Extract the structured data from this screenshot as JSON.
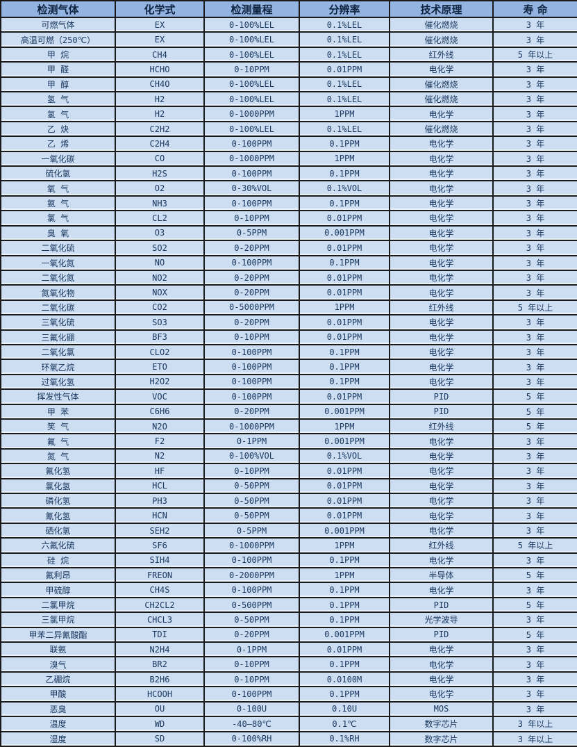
{
  "colors": {
    "header_bg": "#93b4e0",
    "row_bg": "#cdddf2",
    "border": "#1a1a1a",
    "text": "#17375e",
    "header_text": "#0f2440",
    "row_highlight": "#e9f1fb"
  },
  "table": {
    "columns": [
      "检测气体",
      "化学式",
      "检测量程",
      "分辨率",
      "技术原理",
      "寿 命"
    ],
    "column_keys": [
      "gas",
      "formula",
      "range",
      "resolution",
      "principle",
      "lifespan"
    ],
    "rows": [
      [
        "可燃气体",
        "EX",
        "0-100%LEL",
        "0.1%LEL",
        "催化燃烧",
        "3 年"
      ],
      [
        "高温可燃（250℃）",
        "EX",
        "0-100%LEL",
        "0.1%LEL",
        "催化燃烧",
        "3 年"
      ],
      [
        "甲 烷",
        "CH4",
        "0-100%LEL",
        "0.1%LEL",
        "红外线",
        "5 年以上"
      ],
      [
        "甲 醛",
        "HCHO",
        "0-10PPM",
        "0.01PPM",
        "电化学",
        "3 年"
      ],
      [
        "甲 醇",
        "CH4O",
        "0-100%LEL",
        "0.1%LEL",
        "催化燃烧",
        "3 年"
      ],
      [
        "氢 气",
        "H2",
        "0-100%LEL",
        "0.1%LEL",
        "催化燃烧",
        "3 年"
      ],
      [
        "氢 气",
        "H2",
        "0-1000PPM",
        "1PPM",
        "电化学",
        "3 年"
      ],
      [
        "乙 炔",
        "C2H2",
        "0-100%LEL",
        "0.1%LEL",
        "催化燃烧",
        "3 年"
      ],
      [
        "乙 烯",
        "C2H4",
        "0-100PPM",
        "0.1PPM",
        "电化学",
        "3 年"
      ],
      [
        "一氧化碳",
        "CO",
        "0-1000PPM",
        "1PPM",
        "电化学",
        "3 年"
      ],
      [
        "硫化氢",
        "H2S",
        "0-100PPM",
        "0.1PPM",
        "电化学",
        "3 年"
      ],
      [
        "氧 气",
        "O2",
        "0-30%VOL",
        "0.1%VOL",
        "电化学",
        "3 年"
      ],
      [
        "氨 气",
        "NH3",
        "0-100PPM",
        "0.1PPM",
        "电化学",
        "3 年"
      ],
      [
        "氯 气",
        "CL2",
        "0-10PPM",
        "0.01PPM",
        "电化学",
        "3 年"
      ],
      [
        "臭 氧",
        "O3",
        "0-5PPM",
        "0.001PPM",
        "电化学",
        "3 年"
      ],
      [
        "二氧化硫",
        "SO2",
        "0-20PPM",
        "0.01PPM",
        "电化学",
        "3 年"
      ],
      [
        "一氧化氮",
        "NO",
        "0-100PPM",
        "0.1PPM",
        "电化学",
        "3 年"
      ],
      [
        "二氧化氮",
        "NO2",
        "0-20PPM",
        "0.01PPM",
        "电化学",
        "3 年"
      ],
      [
        "氮氧化物",
        "NOX",
        "0-20PPM",
        "0.01PPM",
        "电化学",
        "3 年"
      ],
      [
        "二氧化碳",
        "CO2",
        "0-5000PPM",
        "1PPM",
        "红外线",
        "5 年以上"
      ],
      [
        "三氧化硫",
        "SO3",
        "0-20PPM",
        "0.01PPM",
        "电化学",
        "3 年"
      ],
      [
        "三氟化硼",
        "BF3",
        "0-10PPM",
        "0.01PPM",
        "电化学",
        "3 年"
      ],
      [
        "二氧化氯",
        "CLO2",
        "0-100PPM",
        "0.1PPM",
        "电化学",
        "3 年"
      ],
      [
        "环氧乙烷",
        "ETO",
        "0-100PPM",
        "0.1PPM",
        "电化学",
        "3 年"
      ],
      [
        "过氧化氢",
        "H2O2",
        "0-100PPM",
        "0.1PPM",
        "电化学",
        "3 年"
      ],
      [
        "挥发性气体",
        "VOC",
        "0-100PPM",
        "0.01PPM",
        "PID",
        "5 年"
      ],
      [
        "甲 苯",
        "C6H6",
        "0-20PPM",
        "0.001PPM",
        "PID",
        "5 年"
      ],
      [
        "笑 气",
        "N2O",
        "0-1000PPM",
        "1PPM",
        "红外线",
        "5 年"
      ],
      [
        "氟 气",
        "F2",
        "0-1PPM",
        "0.001PPM",
        "电化学",
        "3 年"
      ],
      [
        "氮 气",
        "N2",
        "0-100%VOL",
        "0.1%VOL",
        "电化学",
        "3 年"
      ],
      [
        "氟化氢",
        "HF",
        "0-10PPM",
        "0.01PPM",
        "电化学",
        "3 年"
      ],
      [
        "氯化氢",
        "HCL",
        "0-50PPM",
        "0.01PPM",
        "电化学",
        "3 年"
      ],
      [
        "磷化氢",
        "PH3",
        "0-50PPM",
        "0.01PPM",
        "电化学",
        "3 年"
      ],
      [
        "氰化氢",
        "HCN",
        "0-50PPM",
        "0.01PPM",
        "电化学",
        "3 年"
      ],
      [
        "硒化氢",
        "SEH2",
        "0-5PPM",
        "0.001PPM",
        "电化学",
        "3 年"
      ],
      [
        "六氟化硫",
        "SF6",
        "0-1000PPM",
        "1PPM",
        "红外线",
        "5 年以上"
      ],
      [
        "硅 烷",
        "SIH4",
        "0-100PPM",
        "0.1PPM",
        "电化学",
        "3 年"
      ],
      [
        "氟利昂",
        "FREON",
        "0-2000PPM",
        "1PPM",
        "半导体",
        "5 年"
      ],
      [
        "甲硫醇",
        "CH4S",
        "0-100PPM",
        "0.1PPM",
        "电化学",
        "3 年"
      ],
      [
        "二氯甲烷",
        "CH2CL2",
        "0-500PPM",
        "0.1PPM",
        "PID",
        "5 年"
      ],
      [
        "三氯甲烷",
        "CHCL3",
        "0-50PPM",
        "0.1PPM",
        "光学波导",
        "3 年"
      ],
      [
        "甲苯二异氰酸酯",
        "TDI",
        "0-20PPM",
        "0.001PPM",
        "PID",
        "5 年"
      ],
      [
        "联氨",
        "N2H4",
        "0-1PPM",
        "0.01PPM",
        "电化学",
        "3 年"
      ],
      [
        "溴气",
        "BR2",
        "0-10PPM",
        "0.1PPM",
        "电化学",
        "3 年"
      ],
      [
        "乙硼烷",
        "B2H6",
        "0-10PPM",
        "0.0100M",
        "电化学",
        "3 年"
      ],
      [
        "甲酸",
        "HCOOH",
        "0-100PPM",
        "0.1PPM",
        "电化学",
        "3 年"
      ],
      [
        "恶臭",
        "OU",
        "0-100U",
        "0.10U",
        "MOS",
        "3 年"
      ],
      [
        "温度",
        "WD",
        "-40—80℃",
        "0.1℃",
        "数字芯片",
        "3 年以上"
      ],
      [
        "湿度",
        "SD",
        "0-100%RH",
        "0.1%RH",
        "数字芯片",
        "3 年以上"
      ]
    ]
  }
}
